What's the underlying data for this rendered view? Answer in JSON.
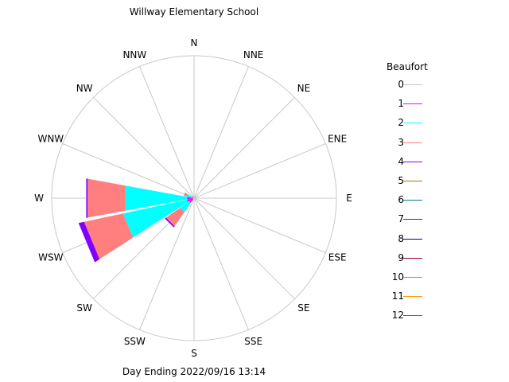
{
  "chart_data": {
    "type": "wind-rose",
    "title": "Willway Elementary School",
    "footer": "Day Ending 2022/09/16 13:14",
    "directions": [
      "N",
      "NNE",
      "NE",
      "ENE",
      "E",
      "ESE",
      "SE",
      "SSE",
      "S",
      "SSW",
      "SW",
      "WSW",
      "W",
      "WNW",
      "NW",
      "NNW"
    ],
    "legend_title": "Beaufort",
    "legend": [
      {
        "label": "0",
        "color": "#c8c8c8"
      },
      {
        "label": "1",
        "color": "#ff00ff"
      },
      {
        "label": "2",
        "color": "#00ffff"
      },
      {
        "label": "3",
        "color": "#ff7f7f"
      },
      {
        "label": "4",
        "color": "#8000ff"
      },
      {
        "label": "5",
        "color": "#b07020"
      },
      {
        "label": "6",
        "color": "#008080"
      },
      {
        "label": "7",
        "color": "#c00000"
      },
      {
        "label": "8",
        "color": "#000080"
      },
      {
        "label": "9",
        "color": "#a00030"
      },
      {
        "label": "10",
        "color": "#00ff00"
      },
      {
        "label": "11",
        "color": "#ff9900"
      },
      {
        "label": "12",
        "color": "#008b8b"
      }
    ],
    "series": [
      {
        "name": "0",
        "values": [
          0.5,
          0.5,
          0.5,
          0.5,
          0.5,
          0.5,
          0.5,
          0.5,
          0.5,
          0.5,
          1,
          1,
          1,
          0.5,
          0.5,
          0.5
        ]
      },
      {
        "name": "1",
        "values": [
          0,
          0,
          0,
          0,
          0,
          0,
          0,
          0,
          0,
          0,
          3,
          4,
          4,
          1,
          0,
          0
        ]
      },
      {
        "name": "2",
        "values": [
          0,
          0,
          0,
          0,
          0,
          0,
          0,
          0,
          0,
          0,
          8,
          46,
          44,
          4,
          0,
          0
        ]
      },
      {
        "name": "3",
        "values": [
          0,
          0,
          0,
          0,
          0,
          0,
          0,
          0,
          0,
          0,
          12,
          28,
          27,
          2,
          0,
          0
        ]
      },
      {
        "name": "4",
        "values": [
          0,
          0,
          0,
          0,
          0,
          0,
          0,
          0,
          0,
          0,
          1,
          4,
          1,
          0,
          0,
          0
        ]
      },
      {
        "name": "5",
        "values": [
          0,
          0,
          0,
          0,
          0,
          0,
          0,
          0,
          0,
          0,
          0,
          0,
          0,
          0,
          0,
          0
        ]
      },
      {
        "name": "6",
        "values": [
          0,
          0,
          0,
          0,
          0,
          0,
          0,
          0,
          0,
          0,
          0,
          0,
          0,
          0,
          0,
          0
        ]
      },
      {
        "name": "7",
        "values": [
          0,
          0,
          0,
          0,
          0,
          0,
          0,
          0,
          0,
          0,
          0,
          0,
          0,
          0,
          0,
          0
        ]
      },
      {
        "name": "8",
        "values": [
          0,
          0,
          0,
          0,
          0,
          0,
          0,
          0,
          0,
          0,
          0,
          0,
          0,
          0,
          0,
          0
        ]
      },
      {
        "name": "9",
        "values": [
          0,
          0,
          0,
          0,
          0,
          0,
          0,
          0,
          0,
          0,
          0,
          0,
          0,
          0,
          0,
          0
        ]
      },
      {
        "name": "10",
        "values": [
          0,
          0,
          0,
          0,
          0,
          0,
          0,
          0,
          0,
          0,
          0,
          0,
          0,
          0,
          0,
          0
        ]
      },
      {
        "name": "11",
        "values": [
          0,
          0,
          0,
          0,
          0,
          0,
          0,
          0,
          0,
          0,
          0,
          0,
          0,
          0,
          0,
          0
        ]
      },
      {
        "name": "12",
        "values": [
          0,
          0,
          0,
          0,
          0,
          0,
          0,
          0,
          0,
          0,
          0,
          0,
          0,
          0,
          0,
          0
        ]
      }
    ],
    "max_scale": 100
  }
}
